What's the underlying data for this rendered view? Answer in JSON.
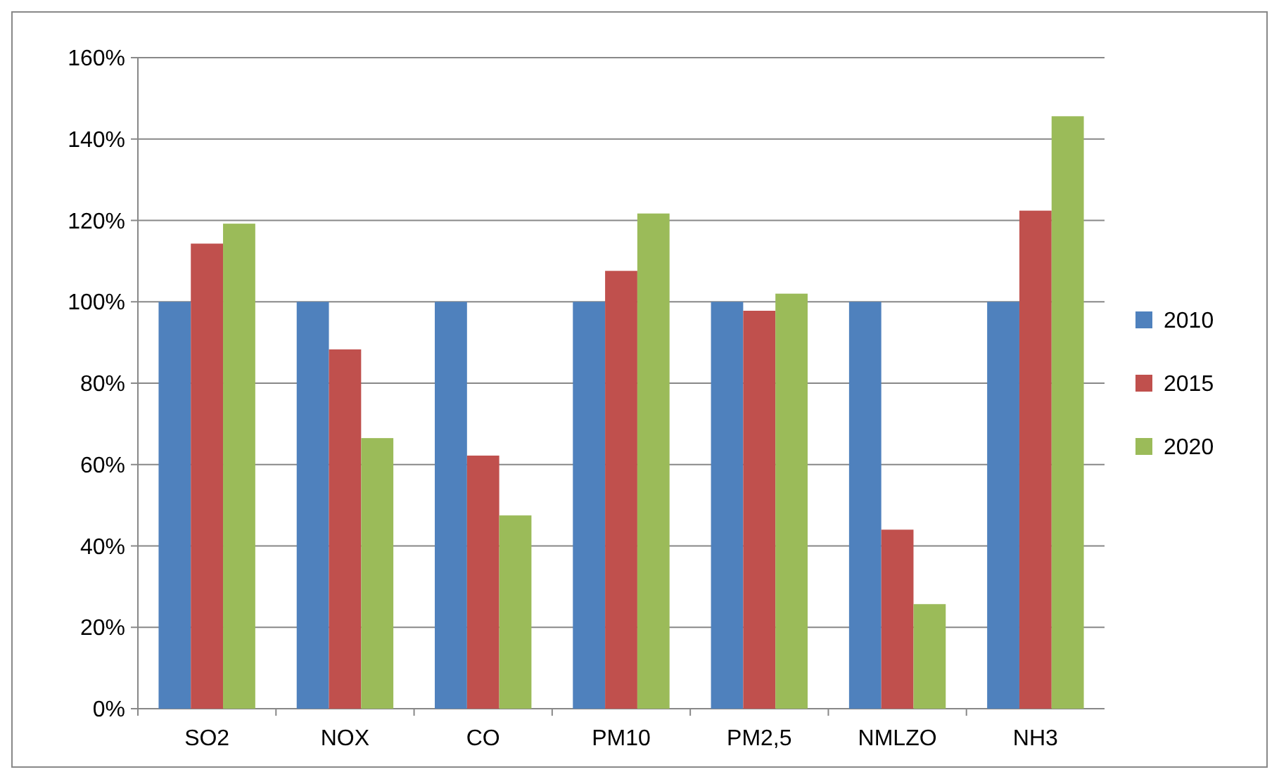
{
  "chart_data": {
    "type": "bar",
    "categories": [
      "SO2",
      "NOX",
      "CO",
      "PM10",
      "PM2,5",
      "NMLZO",
      "NH3"
    ],
    "series": [
      {
        "name": "2010",
        "color": "#4f81bd",
        "values": [
          100,
          100,
          100,
          100,
          100,
          100,
          100
        ]
      },
      {
        "name": "2015",
        "color": "#c0504d",
        "values": [
          114.3,
          88.3,
          62.2,
          107.6,
          97.8,
          44,
          122.4
        ]
      },
      {
        "name": "2020",
        "color": "#9bbb59",
        "values": [
          119.2,
          66.5,
          47.5,
          121.7,
          102,
          25.7,
          145.6
        ]
      }
    ],
    "ylim": [
      0,
      160
    ],
    "yticks": [
      {
        "value": 0,
        "label": "0%"
      },
      {
        "value": 20,
        "label": "20%"
      },
      {
        "value": 40,
        "label": "40%"
      },
      {
        "value": 60,
        "label": "60%"
      },
      {
        "value": 80,
        "label": "80%"
      },
      {
        "value": 100,
        "label": "100%"
      },
      {
        "value": 120,
        "label": "120%"
      },
      {
        "value": 140,
        "label": "140%"
      },
      {
        "value": 160,
        "label": "160%"
      }
    ],
    "grid": "y",
    "legend": "right"
  }
}
